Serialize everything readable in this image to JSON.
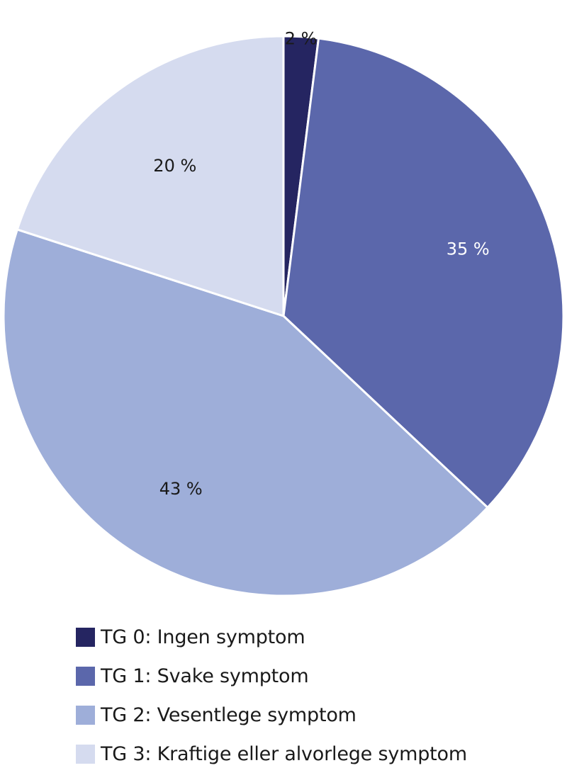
{
  "chart_data": {
    "type": "pie",
    "slices": [
      {
        "category": "TG 0: Ingen symptom",
        "value": 2,
        "label": "2 %",
        "color": "#252561",
        "label_color": "#1a1a1a"
      },
      {
        "category": "TG 1: Svake symptom",
        "value": 35,
        "label": "35 %",
        "color": "#5b67ab",
        "label_color": "#ffffff"
      },
      {
        "category": "TG 2: Vesentlege symptom",
        "value": 43,
        "label": "43 %",
        "color": "#9eaed9",
        "label_color": "#1a1a1a"
      },
      {
        "category": "TG 3: Kraftige eller alvorlege symptom",
        "value": 20,
        "label": "20 %",
        "color": "#d5dbef",
        "label_color": "#1a1a1a"
      }
    ],
    "start": "12 o'clock",
    "direction": "clockwise",
    "legend_position": "bottom"
  }
}
